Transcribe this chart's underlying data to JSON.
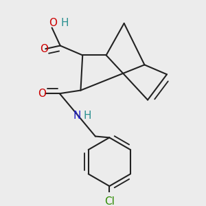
{
  "background_color": "#ececec",
  "bond_color": "#222222",
  "bond_width": 1.5,
  "dbo": 0.012,
  "fig_size": [
    3.0,
    3.0
  ],
  "dpi": 100,
  "atom_colors": {
    "O": "#cc0000",
    "H_teal": "#2a9090",
    "N": "#2222cc",
    "Cl": "#2d8a00"
  }
}
